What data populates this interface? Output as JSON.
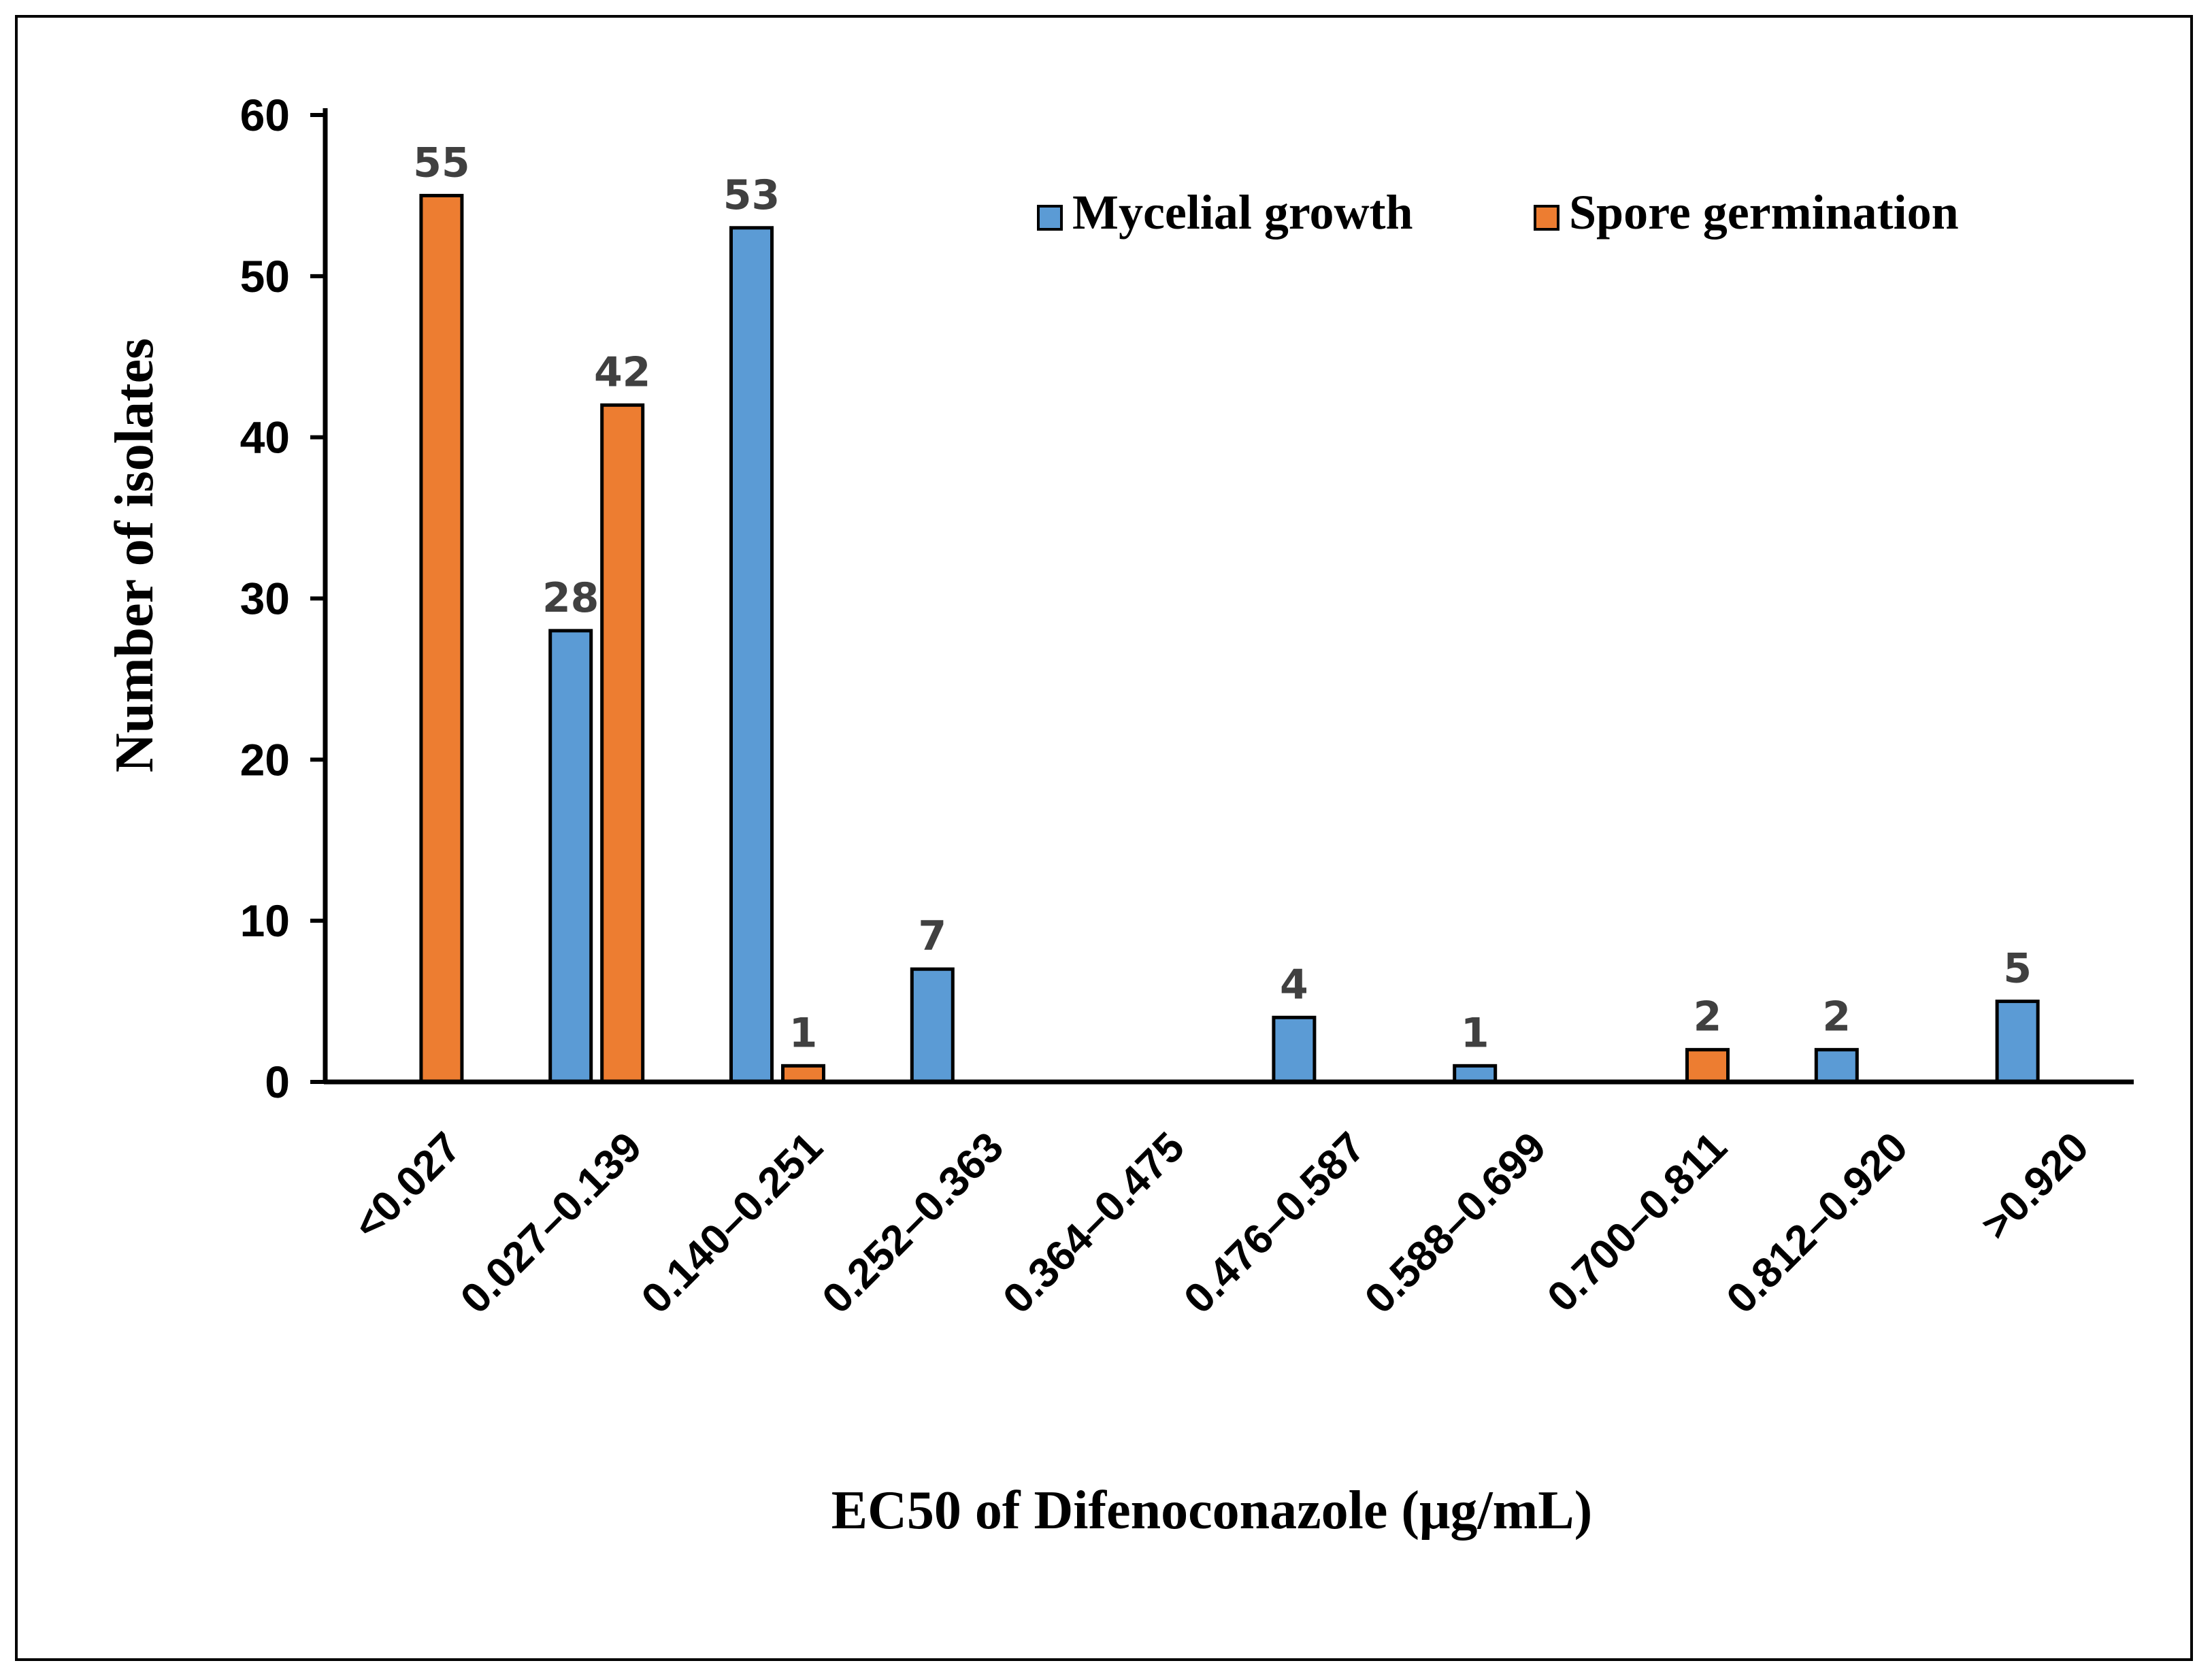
{
  "chart_data": {
    "type": "bar",
    "categories": [
      "<0.027",
      "0.027–0.139",
      "0.140–0.251",
      "0.252–0.363",
      "0.364–0.475",
      "0.476–0.587",
      "0.588–0.699",
      "0.700–0.811",
      "0.812–0.920",
      ">0.920"
    ],
    "series": [
      {
        "name": "Mycelial growth",
        "color": "#5B9BD5",
        "values": [
          0,
          28,
          53,
          7,
          0,
          4,
          1,
          0,
          2,
          5
        ]
      },
      {
        "name": "Spore germination",
        "color": "#ED7D31",
        "values": [
          55,
          42,
          1,
          0,
          0,
          0,
          0,
          2,
          0,
          0
        ]
      }
    ],
    "xlabel": "EC50 of Difenoconazole (μg/mL)",
    "ylabel": "Number of isolates",
    "ylim": [
      0,
      60
    ],
    "yticks": [
      0,
      10,
      20,
      30,
      40,
      50,
      60
    ],
    "grid": false,
    "legend_position": "top-right"
  }
}
